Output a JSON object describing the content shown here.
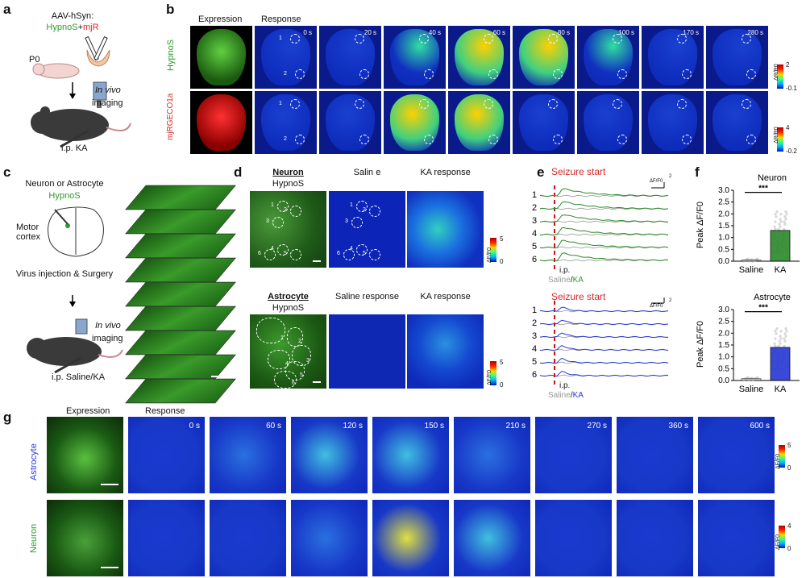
{
  "panels": {
    "a": {
      "label": "a",
      "vector": "AAV-hSyn:",
      "construct_a": "HypnoS",
      "plus": "+",
      "construct_b": "mjR",
      "age": "P0",
      "in_vivo": "In vivo",
      "imaging": "imaging",
      "injection": "i.p. KA"
    },
    "b": {
      "label": "b",
      "expression_header": "Expression",
      "response_header": "Response",
      "rows": [
        {
          "name": "HypnoS",
          "color": "#2e9a2e",
          "cbar_max": "2",
          "cbar_min": "-0.1",
          "cbar_label": "ΔR/R0"
        },
        {
          "name": "mjRGECO1a",
          "color": "#d42a2a",
          "cbar_max": "4",
          "cbar_min": "-0.2",
          "cbar_label": "ΔR/R0"
        }
      ],
      "times": [
        "0 s",
        "20 s",
        "40 s",
        "60 s",
        "80 s",
        "100 s",
        "170 s",
        "280 s"
      ],
      "roi_labels": [
        "1",
        "2"
      ]
    },
    "c": {
      "label": "c",
      "cell_type": "Neuron or Astrocyte",
      "sensor": "HypnoS",
      "region": "Motor cortex",
      "procedure": "Virus injection & Surgery",
      "in_vivo": "In vivo",
      "imaging": "imaging",
      "injection": "i.p. Saline/KA"
    },
    "d": {
      "label": "d",
      "neuron_title": "Neuron",
      "neuron_sub": "HypnoS",
      "neuron_saline": "Salin e",
      "neuron_ka": "KA response",
      "astro_title": "Astrocyte",
      "astro_sub": "HypnoS",
      "astro_saline": "Saline response",
      "astro_ka": "KA response",
      "cbar_max": "5",
      "cbar_min": "0",
      "cbar_label": "ΔF/F0",
      "neuron_rois": [
        "1",
        "2",
        "3",
        "4",
        "5",
        "6"
      ],
      "astro_rois": [
        "1",
        "2",
        "3",
        "4",
        "5",
        "6"
      ]
    },
    "e": {
      "label": "e",
      "seizure_label": "Seizure start",
      "trace_ids": [
        "1",
        "2",
        "3",
        "4",
        "5",
        "6"
      ],
      "ip_label": "i.p.",
      "saline": "Saline",
      "slash": "/",
      "ka": "KA",
      "scale_label": "ΔF/F0",
      "scale_val": "2",
      "colors": {
        "neuron": "#2e8a2e",
        "astro": "#2a3ad4",
        "saline": "#999999",
        "seizure": "#cc1111"
      }
    },
    "f": {
      "label": "f",
      "neuron_title": "Neuron",
      "astro_title": "Astrocyte",
      "ylabel": "Peak ΔF/F0",
      "sig": "***",
      "xcats": [
        "Saline",
        "KA"
      ],
      "yticks": [
        "0.0",
        "0.5",
        "1.0",
        "1.5",
        "2.0",
        "2.5",
        "3.0"
      ]
    },
    "g": {
      "label": "g",
      "expression_header": "Expression",
      "response_header": "Response",
      "rows": [
        {
          "name": "Astrocyte",
          "color": "#2a3ad4",
          "cbar_max": "5",
          "cbar_min": "0",
          "cbar_label": "ΔF/F0"
        },
        {
          "name": "Neuron",
          "color": "#2e9a2e",
          "cbar_max": "4",
          "cbar_min": "0",
          "cbar_label": "ΔF/F0"
        }
      ],
      "times": [
        "0 s",
        "60 s",
        "120 s",
        "150 s",
        "210 s",
        "270 s",
        "360 s",
        "600 s"
      ]
    }
  },
  "chart_data": [
    {
      "type": "bar",
      "title": "Neuron",
      "ylabel": "Peak ΔF/F0",
      "categories": [
        "Saline",
        "KA"
      ],
      "values": [
        0.05,
        1.3
      ],
      "ylim": [
        0,
        3.0
      ],
      "significance": "***",
      "colors": [
        "#bdbdbd",
        "#2e8a2e"
      ]
    },
    {
      "type": "bar",
      "title": "Astrocyte",
      "ylabel": "Peak ΔF/F0",
      "categories": [
        "Saline",
        "KA"
      ],
      "values": [
        0.08,
        1.4
      ],
      "ylim": [
        0,
        3.0
      ],
      "significance": "***",
      "colors": [
        "#bdbdbd",
        "#2a3ad4"
      ]
    }
  ]
}
